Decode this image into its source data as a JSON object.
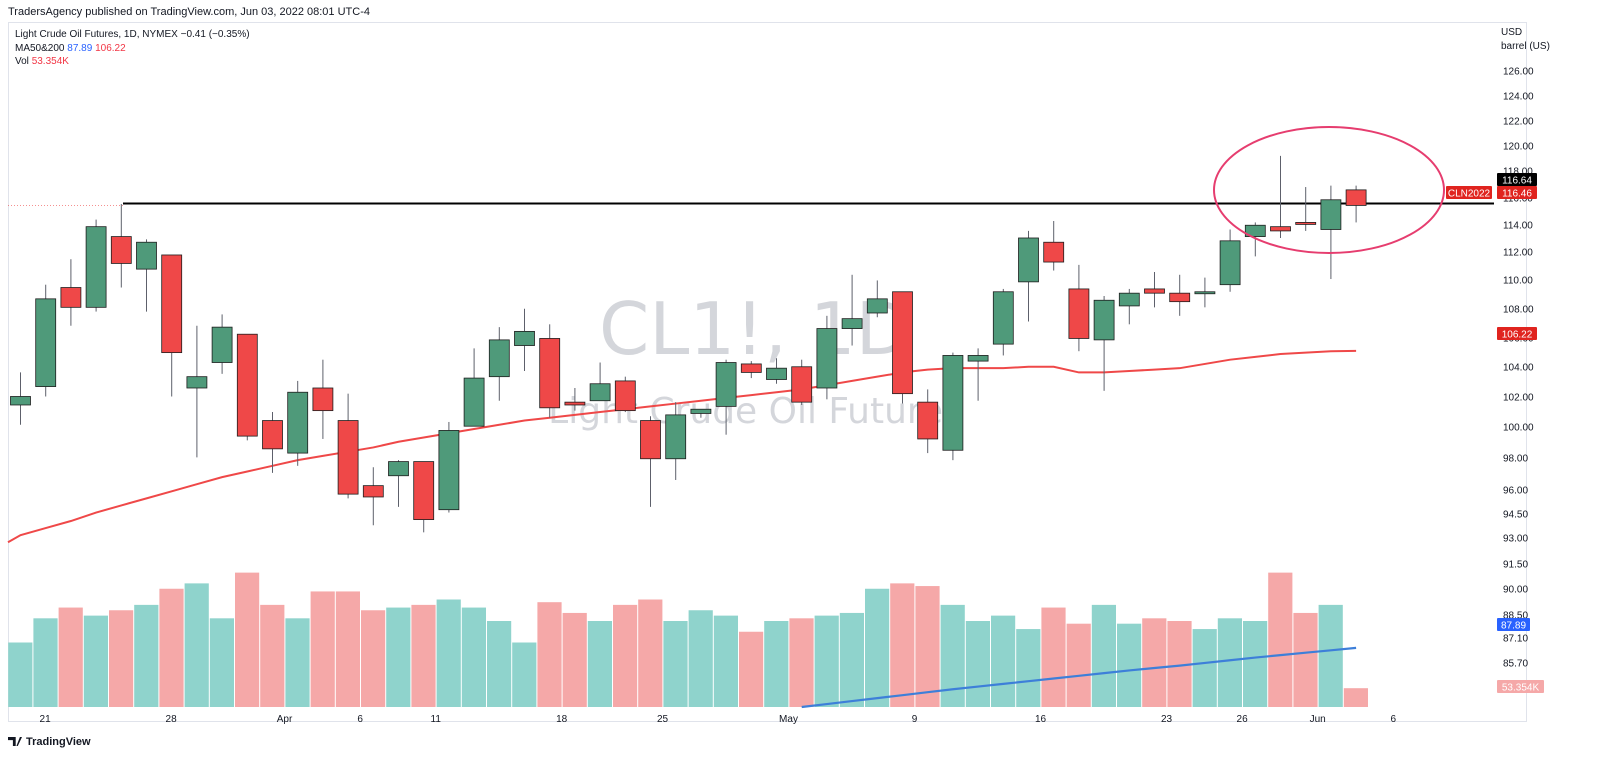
{
  "header": {
    "publisher_line": "TradersAgency published on TradingView.com, Jun 03, 2022 08:01 UTC-4"
  },
  "legend": {
    "symbol_line": "Light Crude Oil Futures, 1D, NYMEX  −0.41 (−0.35%)",
    "ma_label": "MA50&200",
    "ma50_value": "87.89",
    "ma200_value": "106.22",
    "vol_label": "Vol",
    "vol_value": "53.354K"
  },
  "watermark": {
    "symbol": "CL1!, 1D",
    "name": "Light Crude Oil Futures"
  },
  "price_axis": {
    "currency": "USD",
    "unit": "barrel (US)",
    "ticks": [
      "126.00",
      "124.00",
      "122.00",
      "120.00",
      "118.00",
      "116.00",
      "114.00",
      "112.00",
      "110.00",
      "108.00",
      "106.00",
      "104.00",
      "102.00",
      "100.00",
      "98.00",
      "96.00",
      "94.50",
      "93.00",
      "91.50",
      "90.00",
      "88.50",
      "87.10",
      "85.70"
    ]
  },
  "labels": {
    "line_price": "116.64",
    "contract": "CLN2022",
    "last_price": "116.46",
    "ma200_price": "106.22",
    "ma_vol_price": "87.89",
    "vol_price": "53.354K"
  },
  "time_axis": {
    "labels": [
      {
        "text": "21",
        "bar": 1
      },
      {
        "text": "28",
        "bar": 6
      },
      {
        "text": "Apr",
        "bar": 10.5
      },
      {
        "text": "6",
        "bar": 13.5
      },
      {
        "text": "11",
        "bar": 16.5
      },
      {
        "text": "18",
        "bar": 21.5
      },
      {
        "text": "25",
        "bar": 25.5
      },
      {
        "text": "May",
        "bar": 30.5
      },
      {
        "text": "9",
        "bar": 35.5
      },
      {
        "text": "16",
        "bar": 40.5
      },
      {
        "text": "23",
        "bar": 45.5
      },
      {
        "text": "26",
        "bar": 48.5
      },
      {
        "text": "Jun",
        "bar": 51.5
      },
      {
        "text": "6",
        "bar": 54.5
      }
    ]
  },
  "footer": {
    "brand": "TradingView"
  },
  "colors": {
    "up": "#4f9a7a",
    "down": "#ef4848",
    "vol_up": "#8fd3cc",
    "vol_down": "#f5a8a8",
    "ma200": "#ef4848",
    "ma_vol": "#3d7fd9",
    "circle": "#e63d6f",
    "hline": "#000000"
  },
  "chart_data": {
    "type": "candlestick",
    "ylim": [
      92.6,
      127.6
    ],
    "horizontal_line": 116.64,
    "candles": [
      {
        "o": 102.4,
        "h": 104.7,
        "l": 101.0,
        "c": 103.0
      },
      {
        "o": 103.7,
        "h": 110.9,
        "l": 103.0,
        "c": 109.9
      },
      {
        "o": 110.7,
        "h": 112.7,
        "l": 108.0,
        "c": 109.3
      },
      {
        "o": 109.3,
        "h": 115.5,
        "l": 109.0,
        "c": 115.0
      },
      {
        "o": 114.3,
        "h": 116.6,
        "l": 110.7,
        "c": 112.4
      },
      {
        "o": 112.0,
        "h": 114.1,
        "l": 109.0,
        "c": 113.9
      },
      {
        "o": 113.0,
        "h": 113.0,
        "l": 103.0,
        "c": 106.1
      },
      {
        "o": 103.6,
        "h": 108.0,
        "l": 98.7,
        "c": 104.4
      },
      {
        "o": 105.4,
        "h": 108.8,
        "l": 104.6,
        "c": 107.9
      },
      {
        "o": 107.4,
        "h": 107.4,
        "l": 99.9,
        "c": 100.2
      },
      {
        "o": 101.3,
        "h": 101.9,
        "l": 97.6,
        "c": 99.3
      },
      {
        "o": 99.0,
        "h": 104.1,
        "l": 98.1,
        "c": 103.3
      },
      {
        "o": 103.6,
        "h": 105.6,
        "l": 100.0,
        "c": 102.0
      },
      {
        "o": 101.3,
        "h": 103.2,
        "l": 95.8,
        "c": 96.1
      },
      {
        "o": 96.7,
        "h": 98.0,
        "l": 93.9,
        "c": 95.9
      },
      {
        "o": 97.4,
        "h": 98.5,
        "l": 95.2,
        "c": 98.4
      },
      {
        "o": 98.4,
        "h": 98.4,
        "l": 93.4,
        "c": 94.3
      },
      {
        "o": 95.0,
        "h": 101.2,
        "l": 94.8,
        "c": 100.6
      },
      {
        "o": 100.9,
        "h": 106.4,
        "l": 100.9,
        "c": 104.3
      },
      {
        "o": 104.4,
        "h": 107.9,
        "l": 102.7,
        "c": 107.0
      },
      {
        "o": 106.6,
        "h": 109.2,
        "l": 104.8,
        "c": 107.6
      },
      {
        "o": 107.1,
        "h": 108.1,
        "l": 101.5,
        "c": 102.2
      },
      {
        "o": 102.6,
        "h": 103.6,
        "l": 102.0,
        "c": 102.4
      },
      {
        "o": 102.7,
        "h": 105.4,
        "l": 102.7,
        "c": 103.9
      },
      {
        "o": 104.1,
        "h": 104.4,
        "l": 101.9,
        "c": 102.0
      },
      {
        "o": 101.3,
        "h": 101.6,
        "l": 95.2,
        "c": 98.6
      },
      {
        "o": 98.6,
        "h": 102.6,
        "l": 97.1,
        "c": 101.7
      },
      {
        "o": 101.8,
        "h": 102.1,
        "l": 101.5,
        "c": 102.1
      },
      {
        "o": 102.3,
        "h": 105.6,
        "l": 100.3,
        "c": 105.4
      },
      {
        "o": 105.3,
        "h": 105.5,
        "l": 104.3,
        "c": 104.7
      },
      {
        "o": 104.2,
        "h": 105.7,
        "l": 103.9,
        "c": 105.0
      },
      {
        "o": 105.1,
        "h": 105.6,
        "l": 102.4,
        "c": 102.6
      },
      {
        "o": 103.6,
        "h": 108.7,
        "l": 102.8,
        "c": 107.8
      },
      {
        "o": 107.8,
        "h": 111.6,
        "l": 106.6,
        "c": 108.5
      },
      {
        "o": 108.9,
        "h": 111.2,
        "l": 108.6,
        "c": 109.9
      },
      {
        "o": 110.4,
        "h": 110.4,
        "l": 102.5,
        "c": 103.2
      },
      {
        "o": 102.6,
        "h": 103.5,
        "l": 99.0,
        "c": 100.0
      },
      {
        "o": 99.2,
        "h": 106.1,
        "l": 98.5,
        "c": 105.9
      },
      {
        "o": 105.5,
        "h": 106.4,
        "l": 102.7,
        "c": 105.9
      },
      {
        "o": 106.7,
        "h": 110.6,
        "l": 105.9,
        "c": 110.4
      },
      {
        "o": 111.1,
        "h": 114.7,
        "l": 108.3,
        "c": 114.2
      },
      {
        "o": 113.9,
        "h": 115.4,
        "l": 111.9,
        "c": 112.5
      },
      {
        "o": 110.6,
        "h": 112.3,
        "l": 106.2,
        "c": 107.1
      },
      {
        "o": 107.0,
        "h": 110.1,
        "l": 103.4,
        "c": 109.8
      },
      {
        "o": 109.4,
        "h": 110.6,
        "l": 108.1,
        "c": 110.3
      },
      {
        "o": 110.6,
        "h": 111.8,
        "l": 109.3,
        "c": 110.3
      },
      {
        "o": 110.3,
        "h": 111.6,
        "l": 108.7,
        "c": 109.7
      },
      {
        "o": 110.3,
        "h": 111.4,
        "l": 109.3,
        "c": 110.4
      },
      {
        "o": 110.9,
        "h": 114.8,
        "l": 110.4,
        "c": 114.0
      },
      {
        "o": 114.3,
        "h": 115.3,
        "l": 112.9,
        "c": 115.1
      },
      {
        "o": 115.0,
        "h": 120.0,
        "l": 114.2,
        "c": 114.7
      },
      {
        "o": 115.3,
        "h": 117.8,
        "l": 114.7,
        "c": 115.2
      },
      {
        "o": 114.8,
        "h": 117.9,
        "l": 111.3,
        "c": 116.9
      },
      {
        "o": 117.6,
        "h": 117.9,
        "l": 115.3,
        "c": 116.5
      }
    ],
    "ma200": [
      93.2,
      93.7,
      94.2,
      94.8,
      95.3,
      95.8,
      96.3,
      96.8,
      97.3,
      97.7,
      98.1,
      98.5,
      98.8,
      99.1,
      99.4,
      99.8,
      100.1,
      100.4,
      100.7,
      101.0,
      101.3,
      101.5,
      101.7,
      101.9,
      102.1,
      102.3,
      102.5,
      102.7,
      102.9,
      103.1,
      103.3,
      103.5,
      103.8,
      104.1,
      104.4,
      104.7,
      104.9,
      105.0,
      105.0,
      105.0,
      105.1,
      105.1,
      104.7,
      104.7,
      104.8,
      104.9,
      105.0,
      105.3,
      105.6,
      105.8,
      106.0,
      106.1,
      106.2,
      106.22
    ],
    "volume_scale_max": 64,
    "volume": [
      24,
      33,
      37,
      34,
      36,
      38,
      44,
      46,
      33,
      50,
      38,
      33,
      43,
      43,
      36,
      37,
      38,
      40,
      37,
      32,
      24,
      39,
      35,
      32,
      38,
      40,
      32,
      36,
      34,
      28,
      32,
      33,
      34,
      35,
      44,
      46,
      45,
      38,
      32,
      34,
      29,
      37,
      31,
      38,
      31,
      33,
      32,
      29,
      33,
      32,
      50,
      35,
      38,
      7
    ],
    "ma_vol": [
      null,
      null,
      null,
      null,
      null,
      null,
      null,
      null,
      null,
      null,
      null,
      null,
      null,
      null,
      null,
      null,
      null,
      null,
      null,
      null,
      null,
      null,
      null,
      null,
      null,
      null,
      null,
      null,
      null,
      null,
      null,
      0,
      1.1,
      2.2,
      3.3,
      4.4,
      5.5,
      6.6,
      7.6,
      8.6,
      9.6,
      10.6,
      11.6,
      12.6,
      13.6,
      14.5,
      15.4,
      16.4,
      17.4,
      18.4,
      19.3,
      20.2,
      21.1,
      22.0
    ]
  }
}
